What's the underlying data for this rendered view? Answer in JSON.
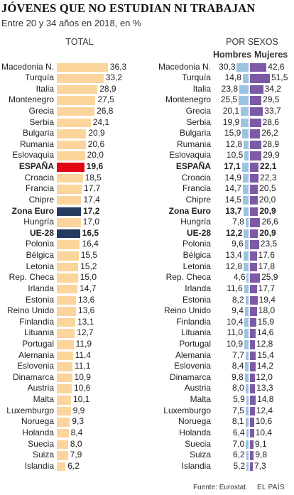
{
  "title": "JÓVENES QUE NO ESTUDIAN NI TRABAJAN",
  "subtitle": "Entre 20 y 34 años en 2018, en %",
  "panel_total_label": "TOTAL",
  "panel_sexos_label": "POR SEXOS",
  "hombres_label": "Hombres",
  "mujeres_label": "Mujeres",
  "source": "Fuente: Eurostat.",
  "brand": "EL PAÍS",
  "colors": {
    "bar_default": "#fbd59b",
    "bar_spain": "#e30613",
    "bar_eu": "#243a5e",
    "bar_hombres": "#9dc3e3",
    "bar_mujeres": "#7d5aa6"
  },
  "chart_data": [
    {
      "type": "bar",
      "orientation": "horizontal",
      "title": "TOTAL",
      "categories": [
        "Macedonia N.",
        "Turquía",
        "Italia",
        "Montenegro",
        "Grecia",
        "Serbia",
        "Bulgaria",
        "Rumania",
        "Eslovaquia",
        "ESPAÑA",
        "Croacia",
        "Francia",
        "Chipre",
        "Zona Euro",
        "Hungría",
        "UE-28",
        "Polonia",
        "Bélgica",
        "Letonia",
        "Rep. Checa",
        "Irlanda",
        "Estonia",
        "Reino Unido",
        "Finlandia",
        "Lituania",
        "Portugal",
        "Alemania",
        "Eslovenia",
        "Dinamarca",
        "Austria",
        "Malta",
        "Luxemburgo",
        "Noruega",
        "Holanda",
        "Suecia",
        "Suiza",
        "Islandia"
      ],
      "values": [
        36.3,
        33.2,
        28.9,
        27.5,
        26.8,
        24.1,
        20.9,
        20.6,
        20.0,
        19.6,
        18.5,
        17.7,
        17.4,
        17.2,
        17.0,
        16.5,
        16.4,
        15.5,
        15.2,
        15.0,
        14.7,
        13.6,
        13.6,
        13.1,
        12.7,
        11.9,
        11.4,
        11.1,
        10.9,
        10.6,
        10.1,
        9.9,
        9.3,
        8.4,
        8.0,
        7.9,
        6.2
      ],
      "value_labels": [
        "36,3",
        "33,2",
        "28,9",
        "27,5",
        "26,8",
        "24,1",
        "20,9",
        "20,6",
        "20,0",
        "19,6",
        "18,5",
        "17,7",
        "17,4",
        "17,2",
        "17,0",
        "16,5",
        "16,4",
        "15,5",
        "15,2",
        "15,0",
        "14,7",
        "13,6",
        "13,6",
        "13,1",
        "12,7",
        "11,9",
        "11,4",
        "11,1",
        "10,9",
        "10,6",
        "10,1",
        "9,9",
        "9,3",
        "8,4",
        "8,0",
        "7,9",
        "6,2"
      ],
      "highlight": {
        "ESPAÑA": "spain",
        "Zona Euro": "eu",
        "UE-28": "eu"
      }
    },
    {
      "type": "bar",
      "orientation": "horizontal",
      "title": "POR SEXOS",
      "categories": [
        "Macedonia N.",
        "Turquía",
        "Italia",
        "Montenegro",
        "Grecia",
        "Serbia",
        "Bulgaria",
        "Rumania",
        "Eslovaquia",
        "ESPAÑA",
        "Croacia",
        "Francia",
        "Chipre",
        "Zona Euro",
        "Hungría",
        "UE-28",
        "Polonia",
        "Bélgica",
        "Letonia",
        "Rep. Checa",
        "Irlanda",
        "Estonia",
        "Reino Unido",
        "Finlandia",
        "Lituania",
        "Portugal",
        "Alemania",
        "Eslovenia",
        "Dinamarca",
        "Austria",
        "Malta",
        "Luxemburgo",
        "Noruega",
        "Holanda",
        "Suecia",
        "Suiza",
        "Islandia"
      ],
      "series": [
        {
          "name": "Hombres",
          "values": [
            30.3,
            14.8,
            23.8,
            25.5,
            20.1,
            19.9,
            15.9,
            12.8,
            10.5,
            17.1,
            14.9,
            14.7,
            14.5,
            13.7,
            7.8,
            12.2,
            9.6,
            13.4,
            12.8,
            4.6,
            11.6,
            8.2,
            9.4,
            10.4,
            11.0,
            10.9,
            7.7,
            8.4,
            9.8,
            8.0,
            5.9,
            7.5,
            8.1,
            6.4,
            7.0,
            6.2,
            5.2
          ],
          "value_labels": [
            "30,3",
            "14,8",
            "23,8",
            "25,5",
            "20,1",
            "19,9",
            "15,9",
            "12,8",
            "10,5",
            "17,1",
            "14,9",
            "14,7",
            "14,5",
            "13,7",
            "7,8",
            "12,2",
            "9,6",
            "13,4",
            "12,8",
            "4,6",
            "11,6",
            "8,2",
            "9,4",
            "10,4",
            "11,0",
            "10,9",
            "7,7",
            "8,4",
            "9,8",
            "8,0",
            "5,9",
            "7,5",
            "8,1",
            "6,4",
            "7,0",
            "6,2",
            "5,2"
          ]
        },
        {
          "name": "Mujeres",
          "values": [
            42.6,
            51.5,
            34.2,
            29.5,
            33.7,
            28.6,
            26.2,
            28.9,
            29.9,
            22.1,
            22.3,
            20.5,
            20.0,
            20.9,
            26.6,
            20.9,
            23.5,
            17.6,
            17.8,
            25.9,
            17.7,
            19.4,
            18.0,
            15.9,
            14.6,
            12.8,
            15.4,
            14.2,
            12.0,
            13.3,
            14.8,
            12.4,
            10.6,
            10.4,
            9.1,
            9.8,
            7.3
          ],
          "value_labels": [
            "42,6",
            "51,5",
            "34,2",
            "29,5",
            "33,7",
            "28,6",
            "26,2",
            "28,9",
            "29,9",
            "22,1",
            "22,3",
            "20,5",
            "20,0",
            "20,9",
            "26,6",
            "20,9",
            "23,5",
            "17,6",
            "17,8",
            "25,9",
            "17,7",
            "19,4",
            "18,0",
            "15,9",
            "14,6",
            "12,8",
            "15,4",
            "14,2",
            "12,0",
            "13,3",
            "14,8",
            "12,4",
            "10,6",
            "10,4",
            "9,1",
            "9,8",
            "7,3"
          ]
        }
      ],
      "bold_rows": [
        "ESPAÑA",
        "Zona Euro",
        "UE-28"
      ]
    }
  ]
}
